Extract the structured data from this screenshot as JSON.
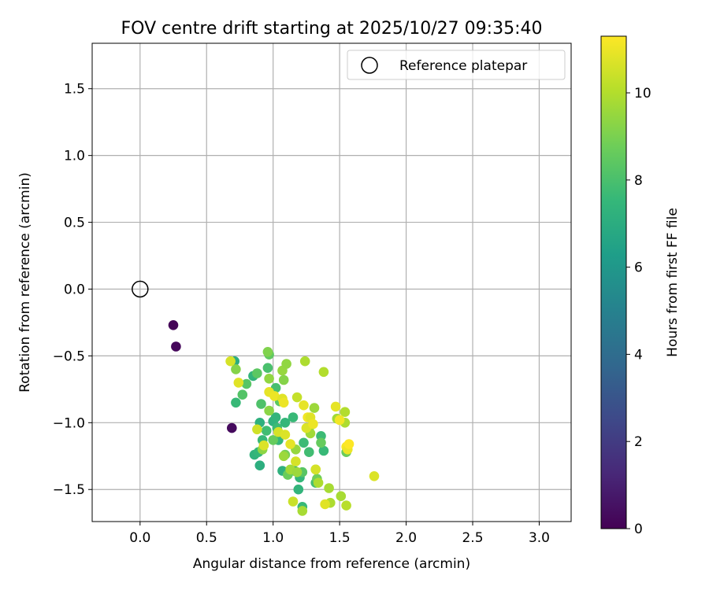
{
  "chart_data": {
    "type": "scatter",
    "title": "FOV centre drift starting at 2025/10/27 09:35:40",
    "xlabel": "Angular distance from reference (arcmin)",
    "ylabel": "Rotation from reference (arcmin)",
    "xlim": [
      -0.36,
      3.24
    ],
    "ylim": [
      -1.74,
      1.84
    ],
    "xticks": [
      0.0,
      0.5,
      1.0,
      1.5,
      2.0,
      2.5,
      3.0
    ],
    "xtick_labels": [
      "0.0",
      "0.5",
      "1.0",
      "1.5",
      "2.0",
      "2.5",
      "3.0"
    ],
    "yticks": [
      -1.5,
      -1.0,
      -0.5,
      0.0,
      0.5,
      1.0,
      1.5
    ],
    "ytick_labels": [
      "−1.5",
      "−1.0",
      "−0.5",
      "0.0",
      "0.5",
      "1.0",
      "1.5"
    ],
    "grid": true,
    "legend": {
      "position": "top-right",
      "entries": [
        "Reference platepar"
      ]
    },
    "reference_point": {
      "x": 0.0,
      "y": 0.0,
      "label": "Reference platepar"
    },
    "colorbar": {
      "label": "Hours from first FF file",
      "range": [
        0,
        11.3
      ],
      "ticks": [
        0,
        2,
        4,
        6,
        8,
        10
      ],
      "tick_labels": [
        "0",
        "2",
        "4",
        "6",
        "8",
        "10"
      ],
      "colormap": [
        "#440154",
        "#482878",
        "#3e4989",
        "#31688e",
        "#26828e",
        "#1f9e89",
        "#35b779",
        "#6ece58",
        "#b5de2b",
        "#fde725"
      ]
    },
    "series": [
      {
        "name": "FOV centre drift",
        "points": [
          {
            "x": 0.25,
            "y": -0.27,
            "h": 0.1
          },
          {
            "x": 0.27,
            "y": -0.43,
            "h": 0.2
          },
          {
            "x": 0.69,
            "y": -1.04,
            "h": 0.3
          },
          {
            "x": 0.71,
            "y": -0.54,
            "h": 7.0
          },
          {
            "x": 0.72,
            "y": -0.85,
            "h": 7.6
          },
          {
            "x": 0.85,
            "y": -0.65,
            "h": 7.4
          },
          {
            "x": 0.86,
            "y": -1.24,
            "h": 7.3
          },
          {
            "x": 0.89,
            "y": -1.22,
            "h": 7.5
          },
          {
            "x": 0.9,
            "y": -1.32,
            "h": 7.1
          },
          {
            "x": 0.9,
            "y": -1.0,
            "h": 7.2
          },
          {
            "x": 0.92,
            "y": -1.13,
            "h": 7.6
          },
          {
            "x": 0.95,
            "y": -1.06,
            "h": 7.8
          },
          {
            "x": 0.96,
            "y": -0.59,
            "h": 8.0
          },
          {
            "x": 1.0,
            "y": -0.99,
            "h": 7.3
          },
          {
            "x": 1.02,
            "y": -0.96,
            "h": 7.4
          },
          {
            "x": 1.03,
            "y": -1.04,
            "h": 7.7
          },
          {
            "x": 1.04,
            "y": -1.13,
            "h": 7.5
          },
          {
            "x": 1.07,
            "y": -1.36,
            "h": 7.2
          },
          {
            "x": 1.09,
            "y": -1.0,
            "h": 7.5
          },
          {
            "x": 1.15,
            "y": -0.96,
            "h": 7.6
          },
          {
            "x": 1.16,
            "y": -1.36,
            "h": 7.3
          },
          {
            "x": 1.19,
            "y": -1.5,
            "h": 7.4
          },
          {
            "x": 1.2,
            "y": -1.41,
            "h": 7.5
          },
          {
            "x": 1.22,
            "y": -1.63,
            "h": 7.6
          },
          {
            "x": 1.23,
            "y": -1.15,
            "h": 7.7
          },
          {
            "x": 1.27,
            "y": -1.22,
            "h": 7.8
          },
          {
            "x": 1.32,
            "y": -1.45,
            "h": 7.9
          },
          {
            "x": 1.36,
            "y": -1.1,
            "h": 7.7
          },
          {
            "x": 1.38,
            "y": -1.21,
            "h": 7.6
          },
          {
            "x": 1.02,
            "y": -0.74,
            "h": 7.9
          },
          {
            "x": 0.77,
            "y": -0.79,
            "h": 8.2
          },
          {
            "x": 0.8,
            "y": -0.71,
            "h": 8.3
          },
          {
            "x": 0.88,
            "y": -0.63,
            "h": 8.4
          },
          {
            "x": 0.91,
            "y": -0.86,
            "h": 8.1
          },
          {
            "x": 0.97,
            "y": -0.49,
            "h": 8.5
          },
          {
            "x": 1.0,
            "y": -1.13,
            "h": 8.6
          },
          {
            "x": 1.05,
            "y": -0.84,
            "h": 8.4
          },
          {
            "x": 1.11,
            "y": -1.39,
            "h": 8.7
          },
          {
            "x": 1.22,
            "y": -1.37,
            "h": 8.3
          },
          {
            "x": 1.27,
            "y": -1.04,
            "h": 8.5
          },
          {
            "x": 1.33,
            "y": -1.42,
            "h": 8.8
          },
          {
            "x": 1.36,
            "y": -1.15,
            "h": 8.6
          },
          {
            "x": 1.55,
            "y": -1.22,
            "h": 8.7
          },
          {
            "x": 1.09,
            "y": -1.24,
            "h": 8.9
          },
          {
            "x": 0.72,
            "y": -0.6,
            "h": 9.2
          },
          {
            "x": 0.92,
            "y": -1.2,
            "h": 9.3
          },
          {
            "x": 0.96,
            "y": -0.47,
            "h": 9.1
          },
          {
            "x": 0.97,
            "y": -0.67,
            "h": 9.4
          },
          {
            "x": 0.97,
            "y": -0.91,
            "h": 9.3
          },
          {
            "x": 1.07,
            "y": -0.61,
            "h": 9.5
          },
          {
            "x": 1.08,
            "y": -0.68,
            "h": 9.2
          },
          {
            "x": 1.08,
            "y": -1.25,
            "h": 9.6
          },
          {
            "x": 1.1,
            "y": -0.56,
            "h": 9.4
          },
          {
            "x": 1.13,
            "y": -1.35,
            "h": 9.7
          },
          {
            "x": 1.17,
            "y": -1.2,
            "h": 9.5
          },
          {
            "x": 1.18,
            "y": -1.37,
            "h": 9.6
          },
          {
            "x": 1.22,
            "y": -1.66,
            "h": 9.8
          },
          {
            "x": 1.24,
            "y": -0.54,
            "h": 9.9
          },
          {
            "x": 1.28,
            "y": -1.08,
            "h": 9.7
          },
          {
            "x": 1.31,
            "y": -0.89,
            "h": 9.6
          },
          {
            "x": 1.32,
            "y": -1.35,
            "h": 9.8
          },
          {
            "x": 1.34,
            "y": -1.45,
            "h": 9.9
          },
          {
            "x": 1.38,
            "y": -0.62,
            "h": 10.0
          },
          {
            "x": 1.42,
            "y": -1.49,
            "h": 9.8
          },
          {
            "x": 1.43,
            "y": -1.6,
            "h": 9.9
          },
          {
            "x": 1.48,
            "y": -0.97,
            "h": 9.7
          },
          {
            "x": 1.51,
            "y": -1.55,
            "h": 9.8
          },
          {
            "x": 1.54,
            "y": -0.92,
            "h": 10.0
          },
          {
            "x": 1.54,
            "y": -1.0,
            "h": 9.9
          },
          {
            "x": 1.55,
            "y": -1.62,
            "h": 10.1
          },
          {
            "x": 0.68,
            "y": -0.54,
            "h": 10.6
          },
          {
            "x": 0.74,
            "y": -0.7,
            "h": 10.8
          },
          {
            "x": 0.88,
            "y": -1.05,
            "h": 10.5
          },
          {
            "x": 0.93,
            "y": -1.17,
            "h": 10.7
          },
          {
            "x": 0.97,
            "y": -0.77,
            "h": 10.9
          },
          {
            "x": 1.01,
            "y": -0.8,
            "h": 11.0
          },
          {
            "x": 1.04,
            "y": -1.07,
            "h": 10.6
          },
          {
            "x": 1.07,
            "y": -0.82,
            "h": 10.8
          },
          {
            "x": 1.08,
            "y": -0.85,
            "h": 11.0
          },
          {
            "x": 1.09,
            "y": -1.09,
            "h": 10.7
          },
          {
            "x": 1.13,
            "y": -1.16,
            "h": 10.9
          },
          {
            "x": 1.15,
            "y": -1.59,
            "h": 10.4
          },
          {
            "x": 1.17,
            "y": -1.29,
            "h": 10.6
          },
          {
            "x": 1.18,
            "y": -0.81,
            "h": 10.3
          },
          {
            "x": 1.23,
            "y": -0.87,
            "h": 10.9
          },
          {
            "x": 1.25,
            "y": -1.04,
            "h": 10.7
          },
          {
            "x": 1.26,
            "y": -0.96,
            "h": 11.1
          },
          {
            "x": 1.28,
            "y": -0.96,
            "h": 10.8
          },
          {
            "x": 1.3,
            "y": -1.01,
            "h": 11.0
          },
          {
            "x": 1.32,
            "y": -1.35,
            "h": 10.6
          },
          {
            "x": 1.39,
            "y": -1.61,
            "h": 10.8
          },
          {
            "x": 1.47,
            "y": -0.88,
            "h": 10.9
          },
          {
            "x": 1.5,
            "y": -0.98,
            "h": 11.1
          },
          {
            "x": 1.55,
            "y": -1.18,
            "h": 11.2
          },
          {
            "x": 1.56,
            "y": -1.2,
            "h": 11.0
          },
          {
            "x": 1.57,
            "y": -1.16,
            "h": 11.3
          },
          {
            "x": 1.76,
            "y": -1.4,
            "h": 10.7
          }
        ]
      }
    ]
  }
}
